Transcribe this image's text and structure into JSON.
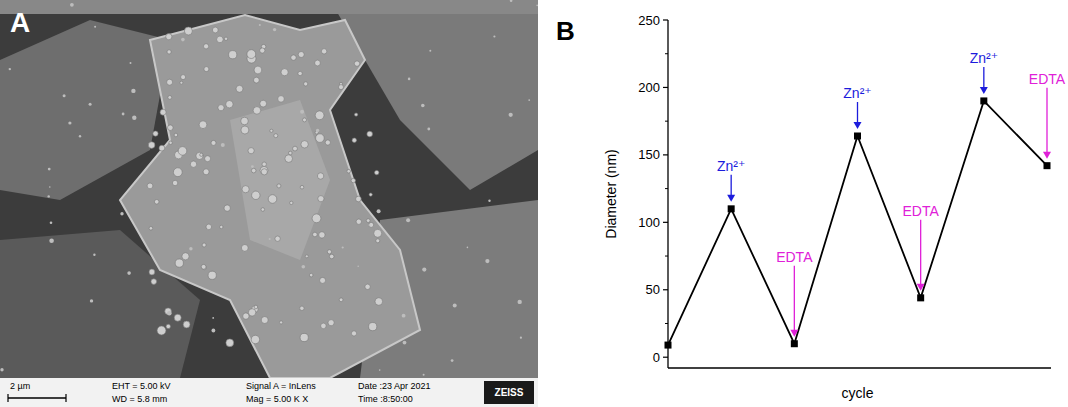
{
  "micrograph": {
    "label": "A",
    "scale_bar": "2 µm",
    "info": [
      "EHT = 5.00 kV",
      "WD = 5.8 mm",
      "Signal A = InLens",
      "Mag =  5.00 K X",
      "Date :23 Apr 2021",
      "Time :8:50:00"
    ],
    "logo": "ZEISS"
  },
  "chart_data": {
    "type": "line",
    "panel_label": "B",
    "x_label": "cycle",
    "y_label": "Diameter (nm)",
    "categories": [
      null,
      null,
      null,
      null,
      null,
      null,
      null
    ],
    "values": [
      9,
      110,
      10,
      164,
      44,
      190,
      142
    ],
    "color": "#000000",
    "marker": "square",
    "ylim": [
      -8,
      250
    ],
    "yticks": [
      0,
      50,
      100,
      150,
      200,
      250
    ],
    "tick_labels": "y",
    "annotations": [
      {
        "text": "Zn²⁺",
        "x": 1,
        "color": "#1c1cdc"
      },
      {
        "text": "EDTA",
        "x": 2,
        "color": "#e020d8"
      },
      {
        "text": "Zn²⁺",
        "x": 3,
        "color": "#1c1cdc"
      },
      {
        "text": "EDTA",
        "x": 4,
        "color": "#e020d8"
      },
      {
        "text": "Zn²⁺",
        "x": 5,
        "color": "#1c1cdc"
      },
      {
        "text": "EDTA",
        "x": 6,
        "color": "#e020d8"
      }
    ]
  }
}
